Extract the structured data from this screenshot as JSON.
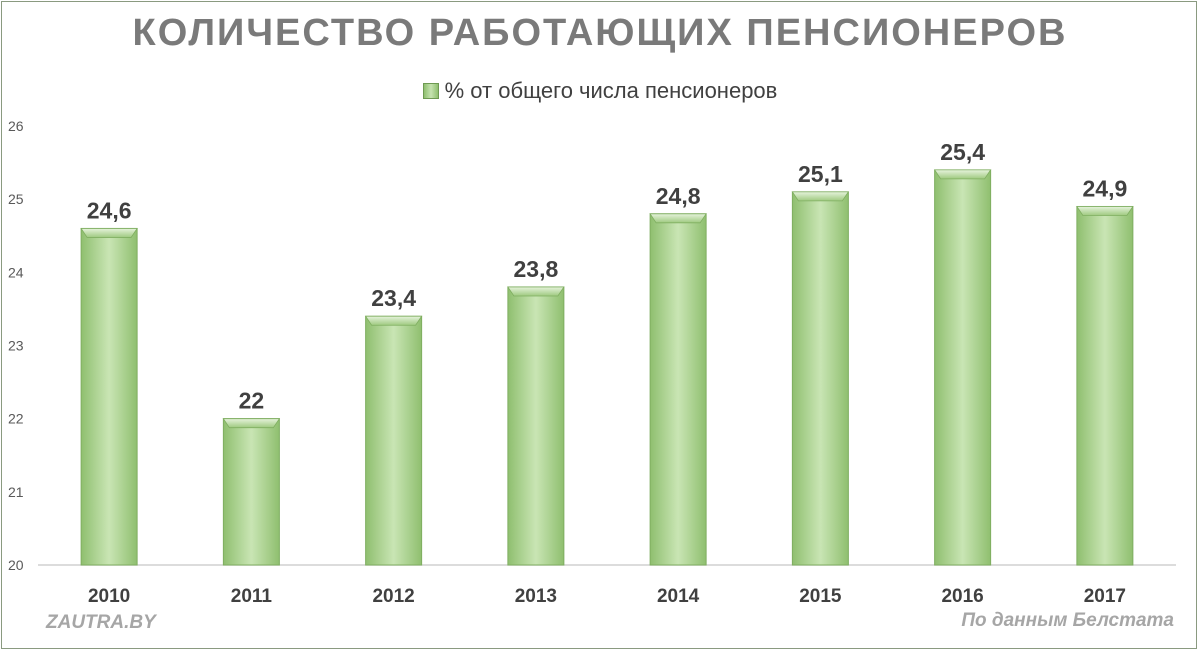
{
  "chart_data": {
    "type": "bar",
    "title": "КОЛИЧЕСТВО РАБОТАЮЩИХ ПЕНСИОНЕРОВ",
    "categories": [
      "2010",
      "2011",
      "2012",
      "2013",
      "2014",
      "2015",
      "2016",
      "2017"
    ],
    "series": [
      {
        "name": "% от общего числа пенсионеров",
        "values": [
          24.6,
          22,
          23.4,
          23.8,
          24.8,
          25.1,
          25.4,
          24.9
        ],
        "data_labels": [
          "24,6",
          "22",
          "23,4",
          "23,8",
          "24,8",
          "25,1",
          "25,4",
          "24,9"
        ],
        "color": "#a9d18e"
      }
    ],
    "ylim": [
      20,
      26
    ],
    "yticks": [
      "20",
      "21",
      "22",
      "23",
      "24",
      "25",
      "26"
    ],
    "grid": false,
    "legend_position": "top"
  },
  "footer": {
    "left": "ZAUTRA.BY",
    "right": "По данным Белстата"
  }
}
